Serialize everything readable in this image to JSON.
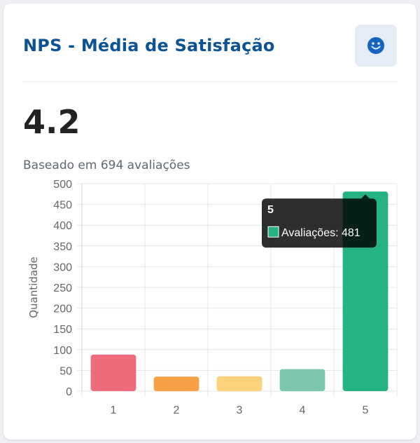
{
  "card": {
    "title": "NPS - Média de Satisfação",
    "icon": "smiley-face-icon",
    "value": "4.2",
    "subtitle": "Baseado em 694 avaliações"
  },
  "colors": {
    "title": "#0b5394",
    "icon_bg": "#e3ecf7",
    "icon": "#1565c0"
  },
  "chart_data": {
    "type": "bar",
    "categories": [
      "1",
      "2",
      "3",
      "4",
      "5"
    ],
    "series": [
      {
        "name": "Avaliações",
        "values": [
          88,
          35,
          36,
          53,
          481
        ],
        "colors": [
          "#ee6b7b",
          "#f7a045",
          "#fdd27d",
          "#7dc6ad",
          "#25b386"
        ]
      }
    ],
    "ylabel": "Quantidade",
    "xlabel": "",
    "ylim": [
      0,
      500
    ],
    "ytick_step": 50,
    "grid": true,
    "tooltip": {
      "category": "5",
      "label": "Avaliações: 481"
    }
  }
}
